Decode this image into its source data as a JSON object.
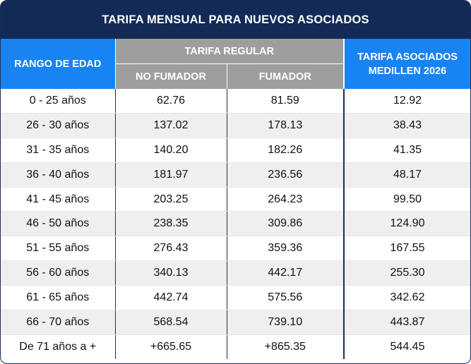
{
  "title": "TARIFA MENSUAL PARA NUEVOS ASOCIADOS",
  "headers": {
    "age_range": "RANGO DE EDAD",
    "regular_rate": "TARIFA REGULAR",
    "non_smoker": "NO FUMADOR",
    "smoker": "FUMADOR",
    "medillen_line1": "TARIFA ASOCIADOS",
    "medillen_line2": "MEDILLEN 2026"
  },
  "colors": {
    "title_background": "#122a55",
    "blue_header": "#1883f2",
    "gray_header": "#9e9e9e",
    "striped_row": "#efefef"
  },
  "rows": [
    {
      "age": "0 - 25 años",
      "non_smoker": "62.76",
      "smoker": "81.59",
      "medillen": "12.92"
    },
    {
      "age": "26 - 30 años",
      "non_smoker": "137.02",
      "smoker": "178.13",
      "medillen": "38.43"
    },
    {
      "age": "31 - 35 años",
      "non_smoker": "140.20",
      "smoker": "182.26",
      "medillen": "41.35"
    },
    {
      "age": "36 - 40 años",
      "non_smoker": "181.97",
      "smoker": "236.56",
      "medillen": "48.17"
    },
    {
      "age": "41 - 45 años",
      "non_smoker": "203.25",
      "smoker": "264.23",
      "medillen": "99.50"
    },
    {
      "age": "46 - 50 años",
      "non_smoker": "238.35",
      "smoker": "309.86",
      "medillen": "124.90"
    },
    {
      "age": "51 - 55 años",
      "non_smoker": "276.43",
      "smoker": "359.36",
      "medillen": "167.55"
    },
    {
      "age": "56 - 60 años",
      "non_smoker": "340.13",
      "smoker": "442.17",
      "medillen": "255.30"
    },
    {
      "age": "61 - 65 años",
      "non_smoker": "442.74",
      "smoker": "575.56",
      "medillen": "342.62"
    },
    {
      "age": "66 - 70 años",
      "non_smoker": "568.54",
      "smoker": "739.10",
      "medillen": "443.87"
    },
    {
      "age": "De 71 años a +",
      "non_smoker": "+665.65",
      "smoker": "+865.35",
      "medillen": "544.45"
    }
  ]
}
